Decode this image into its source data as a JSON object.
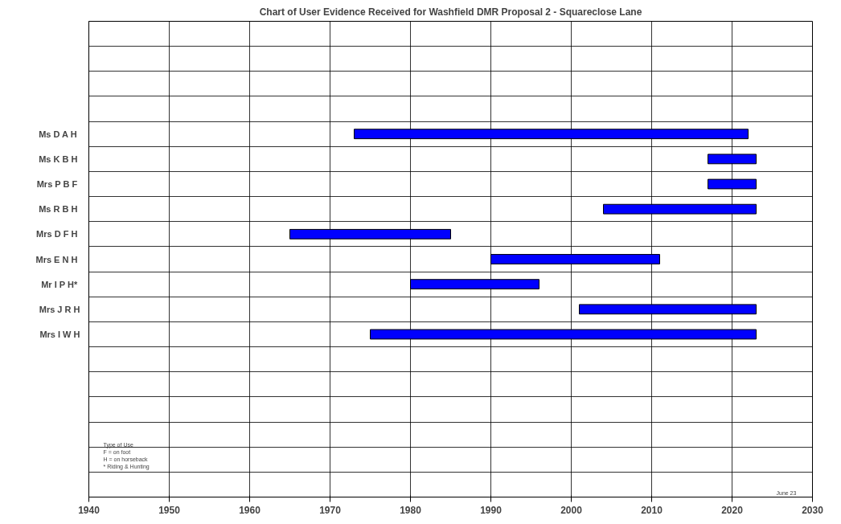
{
  "chart_data": {
    "type": "bar",
    "orientation": "horizontal",
    "title": "Chart of User Evidence Received for Washfield DMR Proposal 2 - Squareclose Lane",
    "categories": [
      null,
      null,
      null,
      null,
      "Ms D A  H",
      "Ms K B  H",
      "Mrs P B  F",
      "Ms R B  H",
      "Mrs D F  H",
      "Mrs E N  H",
      "Mr I P  H*",
      "Mrs J R H",
      "Mrs I W H",
      null,
      null,
      null,
      null,
      null,
      null
    ],
    "base": [
      null,
      null,
      null,
      null,
      1973,
      2017,
      2017,
      2004,
      1965,
      1990,
      1980,
      2001,
      1975,
      null,
      null,
      null,
      null,
      null,
      null
    ],
    "values": [
      null,
      null,
      null,
      null,
      49,
      6,
      6,
      19,
      20,
      21,
      16,
      22,
      48,
      null,
      null,
      null,
      null,
      null,
      null
    ],
    "color": "#0000ff",
    "xlim": [
      1940,
      2030
    ],
    "xticks": [
      1940,
      1950,
      1960,
      1970,
      1980,
      1990,
      2000,
      2010,
      2020,
      2030
    ],
    "grid": true,
    "annotations": [
      "Type of Use",
      "F = on foot",
      "H = on horseback",
      "*  Riding & Hunting",
      "June  23"
    ]
  }
}
